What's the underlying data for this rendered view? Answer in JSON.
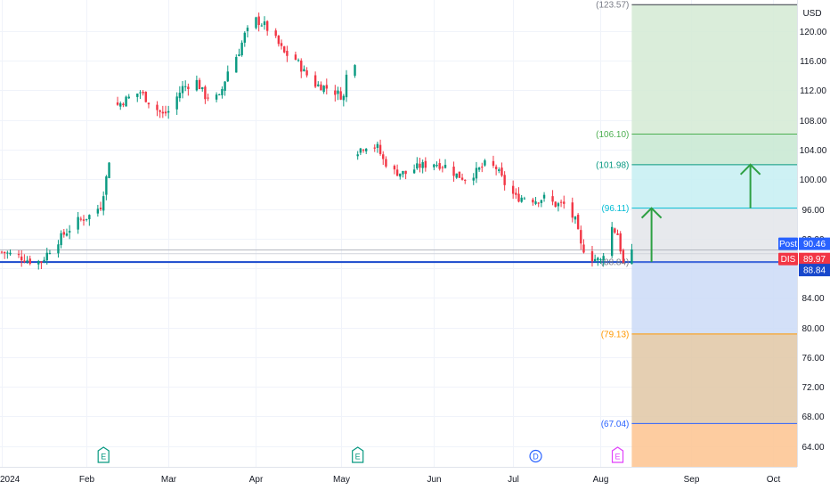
{
  "currency": "USD",
  "chart_data": {
    "type": "candlestick",
    "ticker": "DIS",
    "year_label": "2024",
    "x_ticks": [
      {
        "label": "2024",
        "date": "2024-01-02"
      },
      {
        "label": "Feb",
        "date": "2024-02-01"
      },
      {
        "label": "Mar",
        "date": "2024-03-01"
      },
      {
        "label": "Apr",
        "date": "2024-04-01"
      },
      {
        "label": "May",
        "date": "2024-05-01"
      },
      {
        "label": "Jun",
        "date": "2024-06-03"
      },
      {
        "label": "Jul",
        "date": "2024-07-01"
      },
      {
        "label": "Aug",
        "date": "2024-08-01"
      },
      {
        "label": "Sep",
        "date": "2024-09-02"
      },
      {
        "label": "Oct",
        "date": "2024-10-01"
      }
    ],
    "y_ticks": [
      "120.00",
      "116.00",
      "112.00",
      "108.00",
      "104.00",
      "100.00",
      "96.00",
      "92.00",
      "88.00",
      "84.00",
      "80.00",
      "76.00",
      "72.00",
      "68.00",
      "64.00"
    ],
    "ylim": [
      61.2,
      124.2
    ],
    "close_path": [
      [
        "2024-01-02",
        90.2
      ],
      [
        "2024-01-08",
        89.6
      ],
      [
        "2024-01-12",
        89.0
      ],
      [
        "2024-01-16",
        88.9
      ],
      [
        "2024-01-19",
        90.5
      ],
      [
        "2024-01-24",
        92.6
      ],
      [
        "2024-01-29",
        94.4
      ],
      [
        "2024-02-02",
        95.1
      ],
      [
        "2024-02-06",
        96.4
      ],
      [
        "2024-02-08",
        100.2
      ],
      [
        "2024-02-12",
        110.0
      ],
      [
        "2024-02-15",
        110.8
      ],
      [
        "2024-02-20",
        111.8
      ],
      [
        "2024-02-23",
        110.5
      ],
      [
        "2024-02-28",
        108.7
      ],
      [
        "2024-03-01",
        109.2
      ],
      [
        "2024-03-06",
        112.4
      ],
      [
        "2024-03-11",
        113.2
      ],
      [
        "2024-03-14",
        111.2
      ],
      [
        "2024-03-19",
        111.0
      ],
      [
        "2024-03-22",
        114.6
      ],
      [
        "2024-03-26",
        117.3
      ],
      [
        "2024-03-28",
        119.5
      ],
      [
        "2024-04-01",
        121.5
      ],
      [
        "2024-04-04",
        120.8
      ],
      [
        "2024-04-08",
        118.8
      ],
      [
        "2024-04-11",
        117.0
      ],
      [
        "2024-04-15",
        116.2
      ],
      [
        "2024-04-18",
        114.5
      ],
      [
        "2024-04-22",
        112.8
      ],
      [
        "2024-04-25",
        112.5
      ],
      [
        "2024-04-29",
        111.8
      ],
      [
        "2024-05-02",
        111.1
      ],
      [
        "2024-05-03",
        114.0
      ],
      [
        "2024-05-06",
        116.0
      ],
      [
        "2024-05-07",
        103.9
      ],
      [
        "2024-05-10",
        104.6
      ],
      [
        "2024-05-14",
        104.3
      ],
      [
        "2024-05-16",
        102.6
      ],
      [
        "2024-05-20",
        101.0
      ],
      [
        "2024-05-24",
        100.8
      ],
      [
        "2024-05-29",
        101.8
      ],
      [
        "2024-06-03",
        102.2
      ],
      [
        "2024-06-07",
        101.8
      ],
      [
        "2024-06-11",
        100.6
      ],
      [
        "2024-06-14",
        100.1
      ],
      [
        "2024-06-18",
        101.0
      ],
      [
        "2024-06-21",
        102.0
      ],
      [
        "2024-06-25",
        101.5
      ],
      [
        "2024-06-28",
        99.4
      ],
      [
        "2024-07-02",
        97.5
      ],
      [
        "2024-07-05",
        97.6
      ],
      [
        "2024-07-09",
        97.2
      ],
      [
        "2024-07-12",
        97.5
      ],
      [
        "2024-07-16",
        96.6
      ],
      [
        "2024-07-19",
        96.6
      ],
      [
        "2024-07-23",
        94.4
      ],
      [
        "2024-07-25",
        91.0
      ],
      [
        "2024-07-29",
        89.4
      ],
      [
        "2024-08-01",
        89.0
      ],
      [
        "2024-08-05",
        93.5
      ],
      [
        "2024-08-07",
        92.6
      ],
      [
        "2024-08-09",
        88.6
      ],
      [
        "2024-08-12",
        89.97
      ]
    ],
    "horizontal_lines": [
      {
        "price": 88.84,
        "color": "#1848cc",
        "width": 2
      },
      {
        "price": 90.46,
        "color": "#b2b5be",
        "width": 1
      },
      {
        "price": 89.97,
        "color": "#d1d4dc",
        "width": 1
      }
    ],
    "fib_levels": [
      {
        "label": "(123.57)",
        "price": 123.57,
        "line": "#363a45",
        "text": "#787b86"
      },
      {
        "label": "(106.10)",
        "price": 106.1,
        "line": "#4caf50",
        "text": "#4caf50"
      },
      {
        "label": "(101.98)",
        "price": 101.98,
        "line": "#089981",
        "text": "#089981"
      },
      {
        "label": "(96.11)",
        "price": 96.11,
        "line": "#00bcd4",
        "text": "#00bcd4"
      },
      {
        "label": "(88.84)",
        "price": 88.84,
        "line": "#5b7ee5",
        "text": "#787b86"
      },
      {
        "label": "(79.13)",
        "price": 79.13,
        "line": "#ff9800",
        "text": "#ff9800"
      },
      {
        "label": "(67.04)",
        "price": 67.04,
        "line": "#2962ff",
        "text": "#2962ff"
      }
    ],
    "fib_zones": [
      {
        "from": 106.1,
        "to": 123.57,
        "color": "#d4ead3"
      },
      {
        "from": 101.98,
        "to": 106.1,
        "color": "#c7e7d1"
      },
      {
        "from": 96.11,
        "to": 101.98,
        "color": "#c6eef2"
      },
      {
        "from": 88.84,
        "to": 96.11,
        "color": "#e3e5ea"
      },
      {
        "from": 79.13,
        "to": 88.84,
        "color": "#cbdaf7"
      },
      {
        "from": 67.04,
        "to": 79.13,
        "color": "#e1c7a5"
      },
      {
        "from": 61.2,
        "to": 67.04,
        "color": "#fdc38f"
      }
    ],
    "fib_zone_start_date": "2024-08-12",
    "arrows": [
      {
        "date": "2024-08-19",
        "from": 88.84,
        "to": 96.11,
        "color": "#2ea043"
      },
      {
        "date": "2024-09-23",
        "from": 96.11,
        "to": 101.98,
        "color": "#2ea043"
      }
    ],
    "events": [
      {
        "date": "2024-02-07",
        "text": "E",
        "color": "#089981"
      },
      {
        "date": "2024-05-07",
        "text": "E",
        "color": "#089981"
      },
      {
        "date": "2024-07-09",
        "text": "D",
        "color": "#2962ff"
      },
      {
        "date": "2024-08-07",
        "text": "E",
        "color": "#e040fb"
      }
    ],
    "price_badges": [
      {
        "tag": "Post",
        "value": "90.46",
        "price": 90.46,
        "color": "#2962ff"
      },
      {
        "tag": "DIS",
        "value": "89.97",
        "price": 89.97,
        "color": "#f23645"
      },
      {
        "tag": "",
        "value": "88.84",
        "price": 88.84,
        "color": "#1848cc"
      }
    ]
  }
}
